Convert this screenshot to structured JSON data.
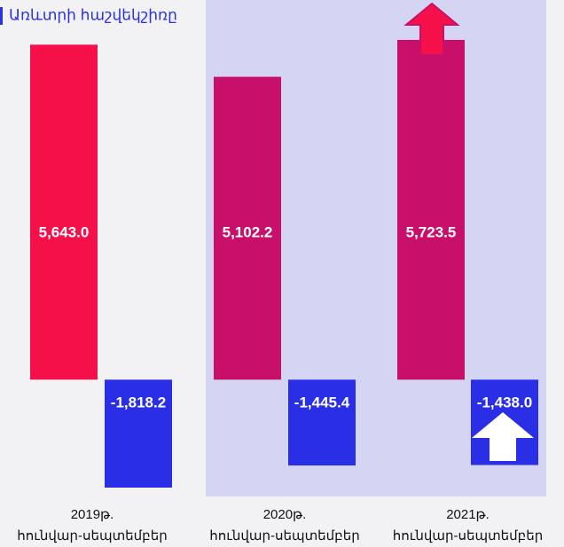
{
  "chart_data": {
    "type": "bar",
    "title": "Առևտրի հաշվեկշիռը",
    "categories": [
      [
        "2019թ.",
        "հունվար-սեպտեմբեր"
      ],
      [
        "2020թ.",
        "հունվար-սեպտեմբեր"
      ],
      [
        "2021թ.",
        "հունվար-սեպտեմբեր"
      ]
    ],
    "series": [
      {
        "colors": [
          "#f5104a",
          "#c8106a",
          "#c8106a"
        ],
        "values": [
          5643.0,
          5102.2,
          5723.5
        ],
        "value_labels": [
          "5,643.0",
          "5,102.2",
          "5,723.5"
        ]
      },
      {
        "color": "#2a2fe6",
        "values": [
          -1818.2,
          -1445.4,
          -1438.0
        ],
        "value_labels": [
          "-1,818.2",
          "-1,445.4",
          "-1,438.0"
        ]
      }
    ]
  }
}
